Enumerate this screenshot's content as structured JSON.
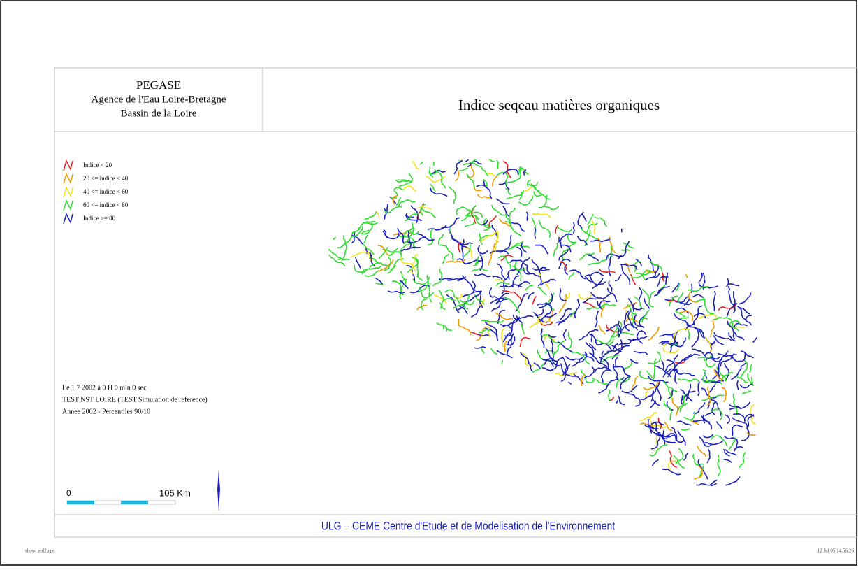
{
  "header": {
    "left": [
      "PEGASE",
      "Agence de l'Eau Loire-Bretagne",
      "Bassin de la Loire"
    ],
    "title": "Indice seqeau matières organiques"
  },
  "legend": [
    {
      "label": "Indice < 20",
      "color": "#e02020"
    },
    {
      "label": "20 <= indice < 40",
      "color": "#f09a00"
    },
    {
      "label": "40 <= indice < 60",
      "color": "#f2e21c"
    },
    {
      "label": "60 <= indice < 80",
      "color": "#2fdc2f"
    },
    {
      "label": "Indice >= 80",
      "color": "#1a1fb8"
    }
  ],
  "info": [
    "Le  1  7 2002 à  0 H  0 min  0 sec",
    "TEST NST LOIRE  (TEST Simulation de reference)",
    "Annee 2002 - Percentiles 90/10"
  ],
  "scale": {
    "start": "0",
    "end": "105  Km"
  },
  "footer": "ULG  –  CEME  Centre  d'Etude  et  de  Modelisation  de  l'Environnement",
  "file": "show_ppl2.cpn",
  "timestamp": "12 Jul 05 14:56:26"
}
